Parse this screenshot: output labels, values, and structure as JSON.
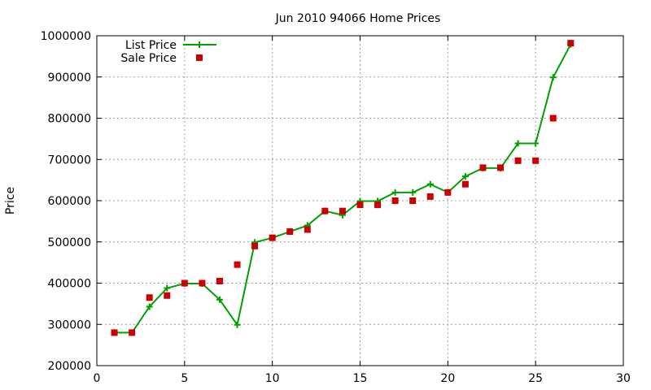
{
  "chart_data": {
    "type": "line",
    "title": "Jun 2010 94066 Home Prices",
    "xlabel": "",
    "ylabel": "Price",
    "xlim": [
      0,
      30
    ],
    "ylim": [
      200000,
      1000000
    ],
    "xticks": [
      0,
      5,
      10,
      15,
      20,
      25,
      30
    ],
    "yticks": [
      200000,
      300000,
      400000,
      500000,
      600000,
      700000,
      800000,
      900000,
      1000000
    ],
    "grid": true,
    "legend_position": "top-left",
    "series": [
      {
        "name": "List Price",
        "style": "line-plus",
        "color": "#00a000",
        "x": [
          1,
          2,
          3,
          4,
          5,
          6,
          7,
          8,
          9,
          10,
          11,
          12,
          13,
          14,
          15,
          16,
          17,
          18,
          19,
          20,
          21,
          22,
          23,
          24,
          25,
          26,
          27
        ],
        "y": [
          280000,
          280000,
          343000,
          388000,
          399000,
          399000,
          360000,
          299000,
          499000,
          510000,
          525000,
          540000,
          575000,
          565000,
          599000,
          599000,
          620000,
          620000,
          640000,
          620000,
          659000,
          679000,
          679000,
          739000,
          739000,
          899000,
          979000
        ]
      },
      {
        "name": "Sale Price",
        "style": "square",
        "color": "#cc0000",
        "x": [
          1,
          2,
          3,
          4,
          5,
          6,
          7,
          8,
          9,
          10,
          11,
          12,
          13,
          14,
          15,
          16,
          17,
          18,
          19,
          20,
          21,
          22,
          23,
          24,
          25,
          26,
          27
        ],
        "y": [
          280000,
          280000,
          365000,
          370000,
          400000,
          400000,
          405000,
          445000,
          490000,
          510000,
          525000,
          530000,
          575000,
          575000,
          590000,
          590000,
          600000,
          600000,
          610000,
          620000,
          640000,
          680000,
          680000,
          697000,
          697000,
          800000,
          982000
        ]
      }
    ]
  }
}
